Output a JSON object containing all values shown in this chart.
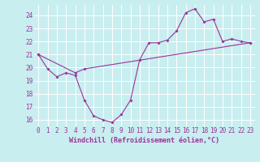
{
  "bg_color": "#c8eef0",
  "grid_color": "#ffffff",
  "line_color": "#993399",
  "xlim": [
    -0.5,
    23.5
  ],
  "ylim": [
    15.5,
    24.8
  ],
  "xticks": [
    0,
    1,
    2,
    3,
    4,
    5,
    6,
    7,
    8,
    9,
    10,
    11,
    12,
    13,
    14,
    15,
    16,
    17,
    18,
    19,
    20,
    21,
    22,
    23
  ],
  "yticks": [
    16,
    17,
    18,
    19,
    20,
    21,
    22,
    23,
    24
  ],
  "xlabel": "Windchill (Refroidissement éolien,°C)",
  "line1_x": [
    0,
    1,
    2,
    3,
    4,
    5,
    6,
    7,
    8,
    9,
    10,
    11,
    12,
    13,
    14,
    15,
    16,
    17,
    18,
    19,
    20,
    21,
    22,
    23
  ],
  "line1_y": [
    21.0,
    19.9,
    19.3,
    19.6,
    19.4,
    17.5,
    16.3,
    16.0,
    15.8,
    16.4,
    17.5,
    20.6,
    21.9,
    21.9,
    22.1,
    22.8,
    24.2,
    24.5,
    23.5,
    23.7,
    22.0,
    22.2,
    22.0,
    21.9
  ],
  "line2_x": [
    0,
    4,
    5,
    23
  ],
  "line2_y": [
    21.0,
    19.6,
    19.9,
    21.9
  ],
  "ticklabel_fontsize": 5.5,
  "xlabel_fontsize": 6.0,
  "marker_size": 2.0,
  "linewidth": 0.8
}
